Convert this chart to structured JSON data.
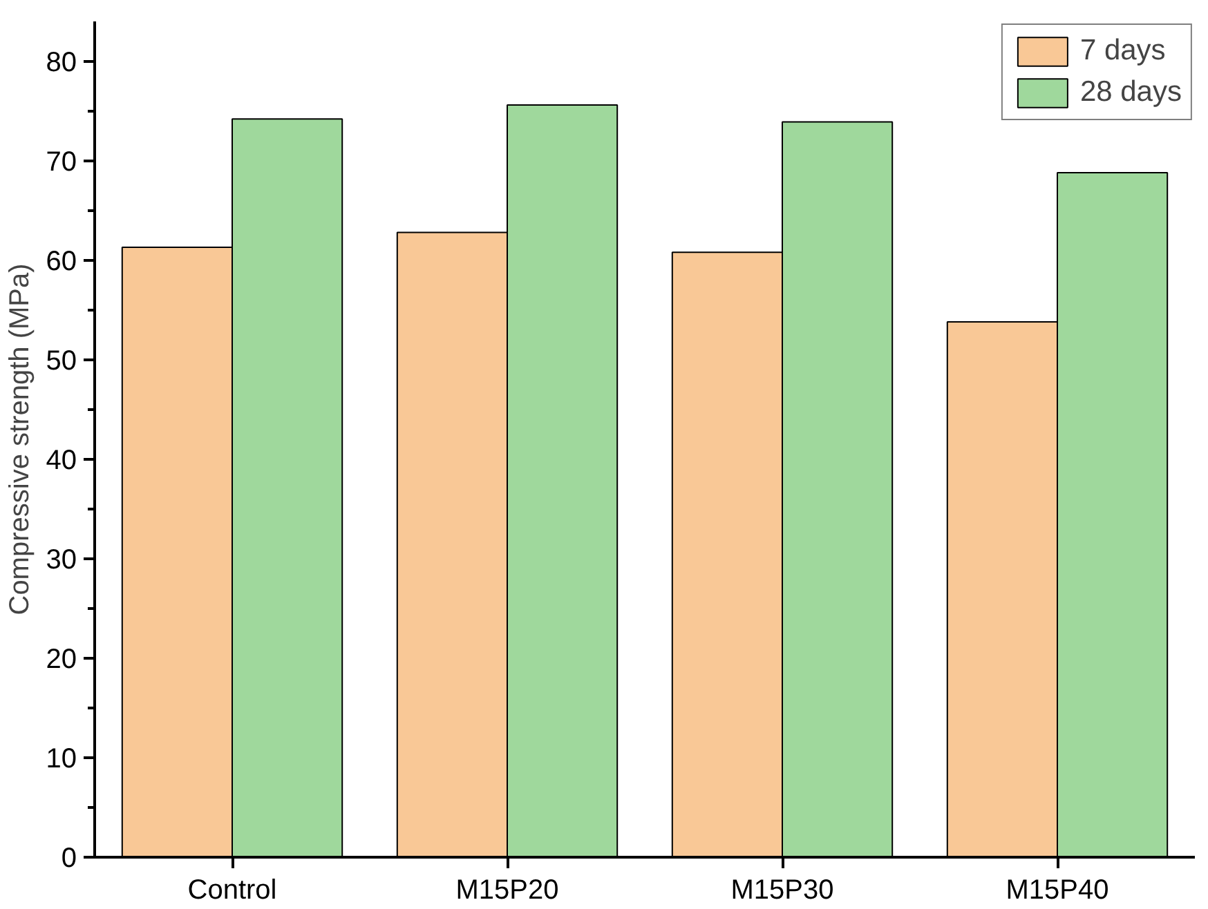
{
  "chart_data": {
    "type": "bar",
    "ylabel": "Compressive strength (MPa)",
    "categories": [
      "Control",
      "M15P20",
      "M15P30",
      "M15P40"
    ],
    "series": [
      {
        "name": "7 days",
        "color": "#f9c896",
        "values": [
          61.3,
          62.8,
          60.8,
          53.8
        ]
      },
      {
        "name": "28 days",
        "color": "#9fd89c",
        "values": [
          74.2,
          75.6,
          73.9,
          68.8
        ]
      }
    ],
    "ylim": [
      0,
      84
    ],
    "yticks": [
      0,
      10,
      20,
      30,
      40,
      50,
      60,
      70,
      80
    ],
    "grid": false,
    "legend": "top right"
  }
}
